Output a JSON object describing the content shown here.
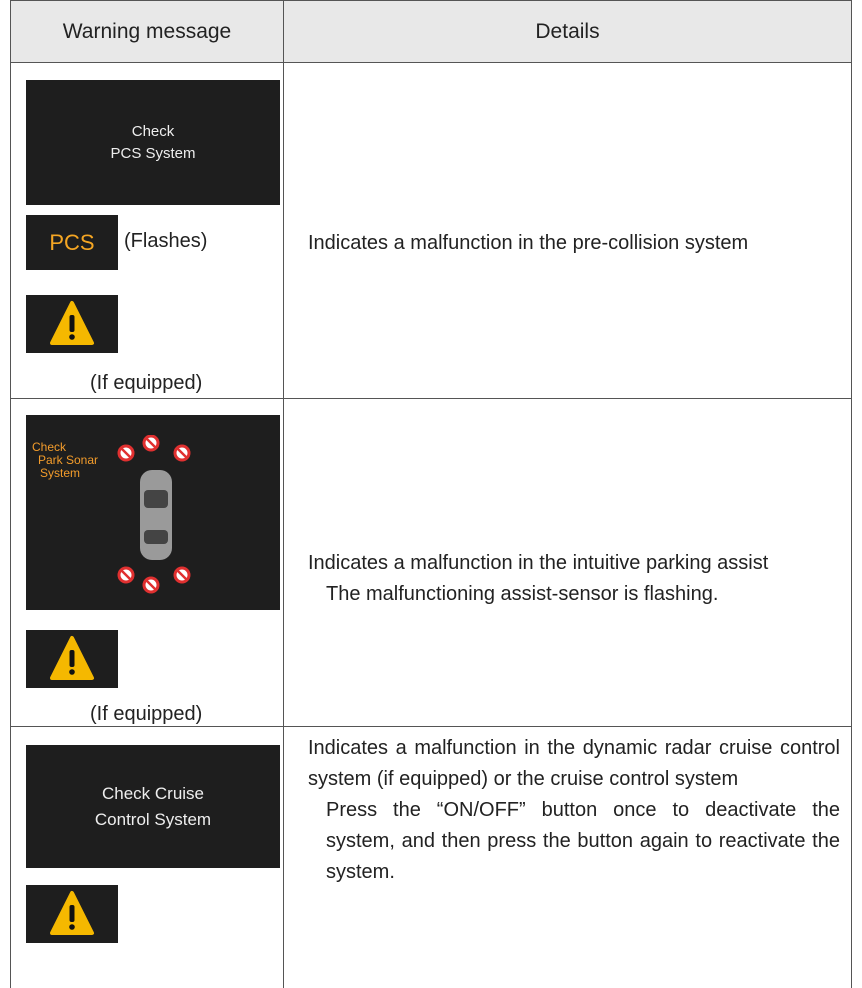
{
  "table": {
    "header": [
      "Warning message",
      "Details"
    ],
    "rows": [
      {
        "display": [
          "Check",
          "PCS System"
        ],
        "indicator": "PCS",
        "indicator_note": "(Flashes)",
        "note": "(If equipped)",
        "details": [
          "Indicates a malfunction in the pre-collision system"
        ]
      },
      {
        "display": [
          "Check",
          "Park Sonar",
          "System"
        ],
        "note": "(If equipped)",
        "details": [
          "Indicates a malfunction in the intuitive parking assist",
          "The malfunctioning assist-sensor is flashing."
        ]
      },
      {
        "display": [
          "Check Cruise",
          "Control System"
        ],
        "details": [
          "Indicates a malfunction in the dynamic radar cruise control system (if equipped) or the cruise control system",
          "Press the “ON/OFF” button once to deactivate the system, and then press the button again to reactivate the system."
        ]
      }
    ]
  }
}
